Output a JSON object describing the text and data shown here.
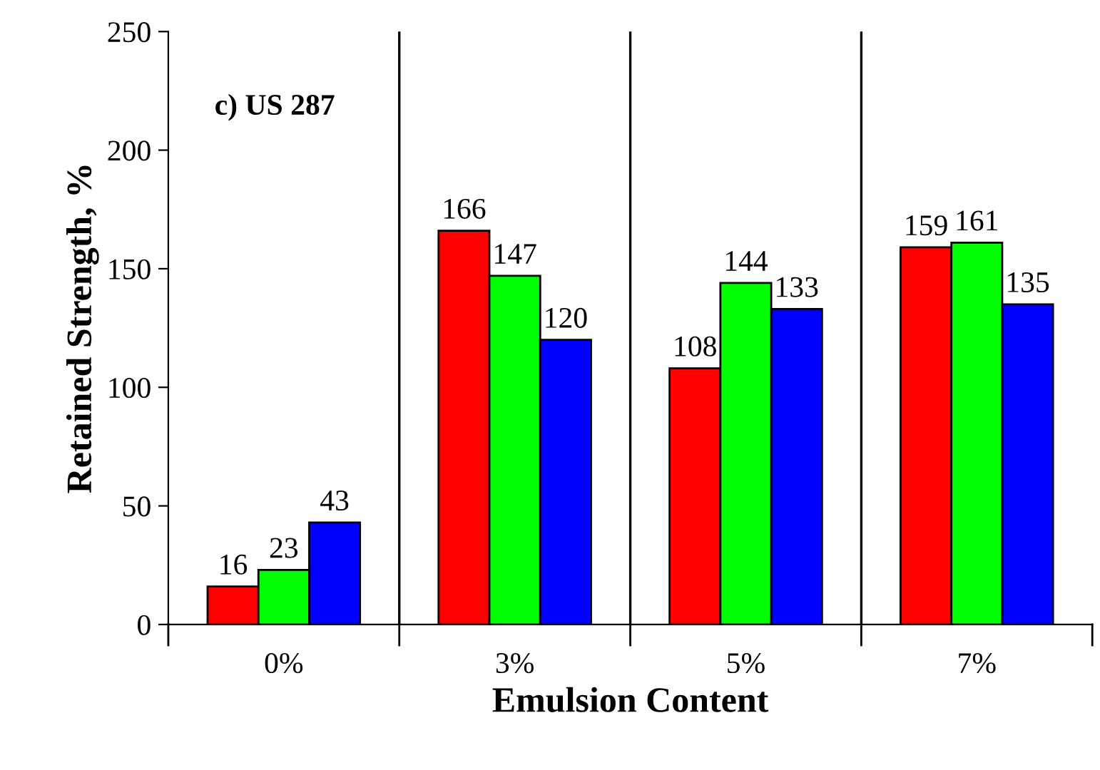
{
  "chart_data": {
    "type": "bar",
    "xlabel": "Emulsion Content",
    "ylabel": "Retained Strength, %",
    "annotations": [
      "c) US 287"
    ],
    "categories": [
      "0%",
      "3%",
      "5%",
      "7%"
    ],
    "series": [
      {
        "color": "#ff0000",
        "values": [
          16,
          166,
          108,
          159
        ]
      },
      {
        "color": "#00ff00",
        "values": [
          23,
          147,
          144,
          161
        ]
      },
      {
        "color": "#0000ff",
        "values": [
          43,
          120,
          133,
          135
        ]
      }
    ],
    "ylim": [
      0,
      250
    ],
    "yticks": [
      0,
      50,
      100,
      150,
      200,
      250
    ],
    "grid": "x",
    "data_labels": true
  }
}
